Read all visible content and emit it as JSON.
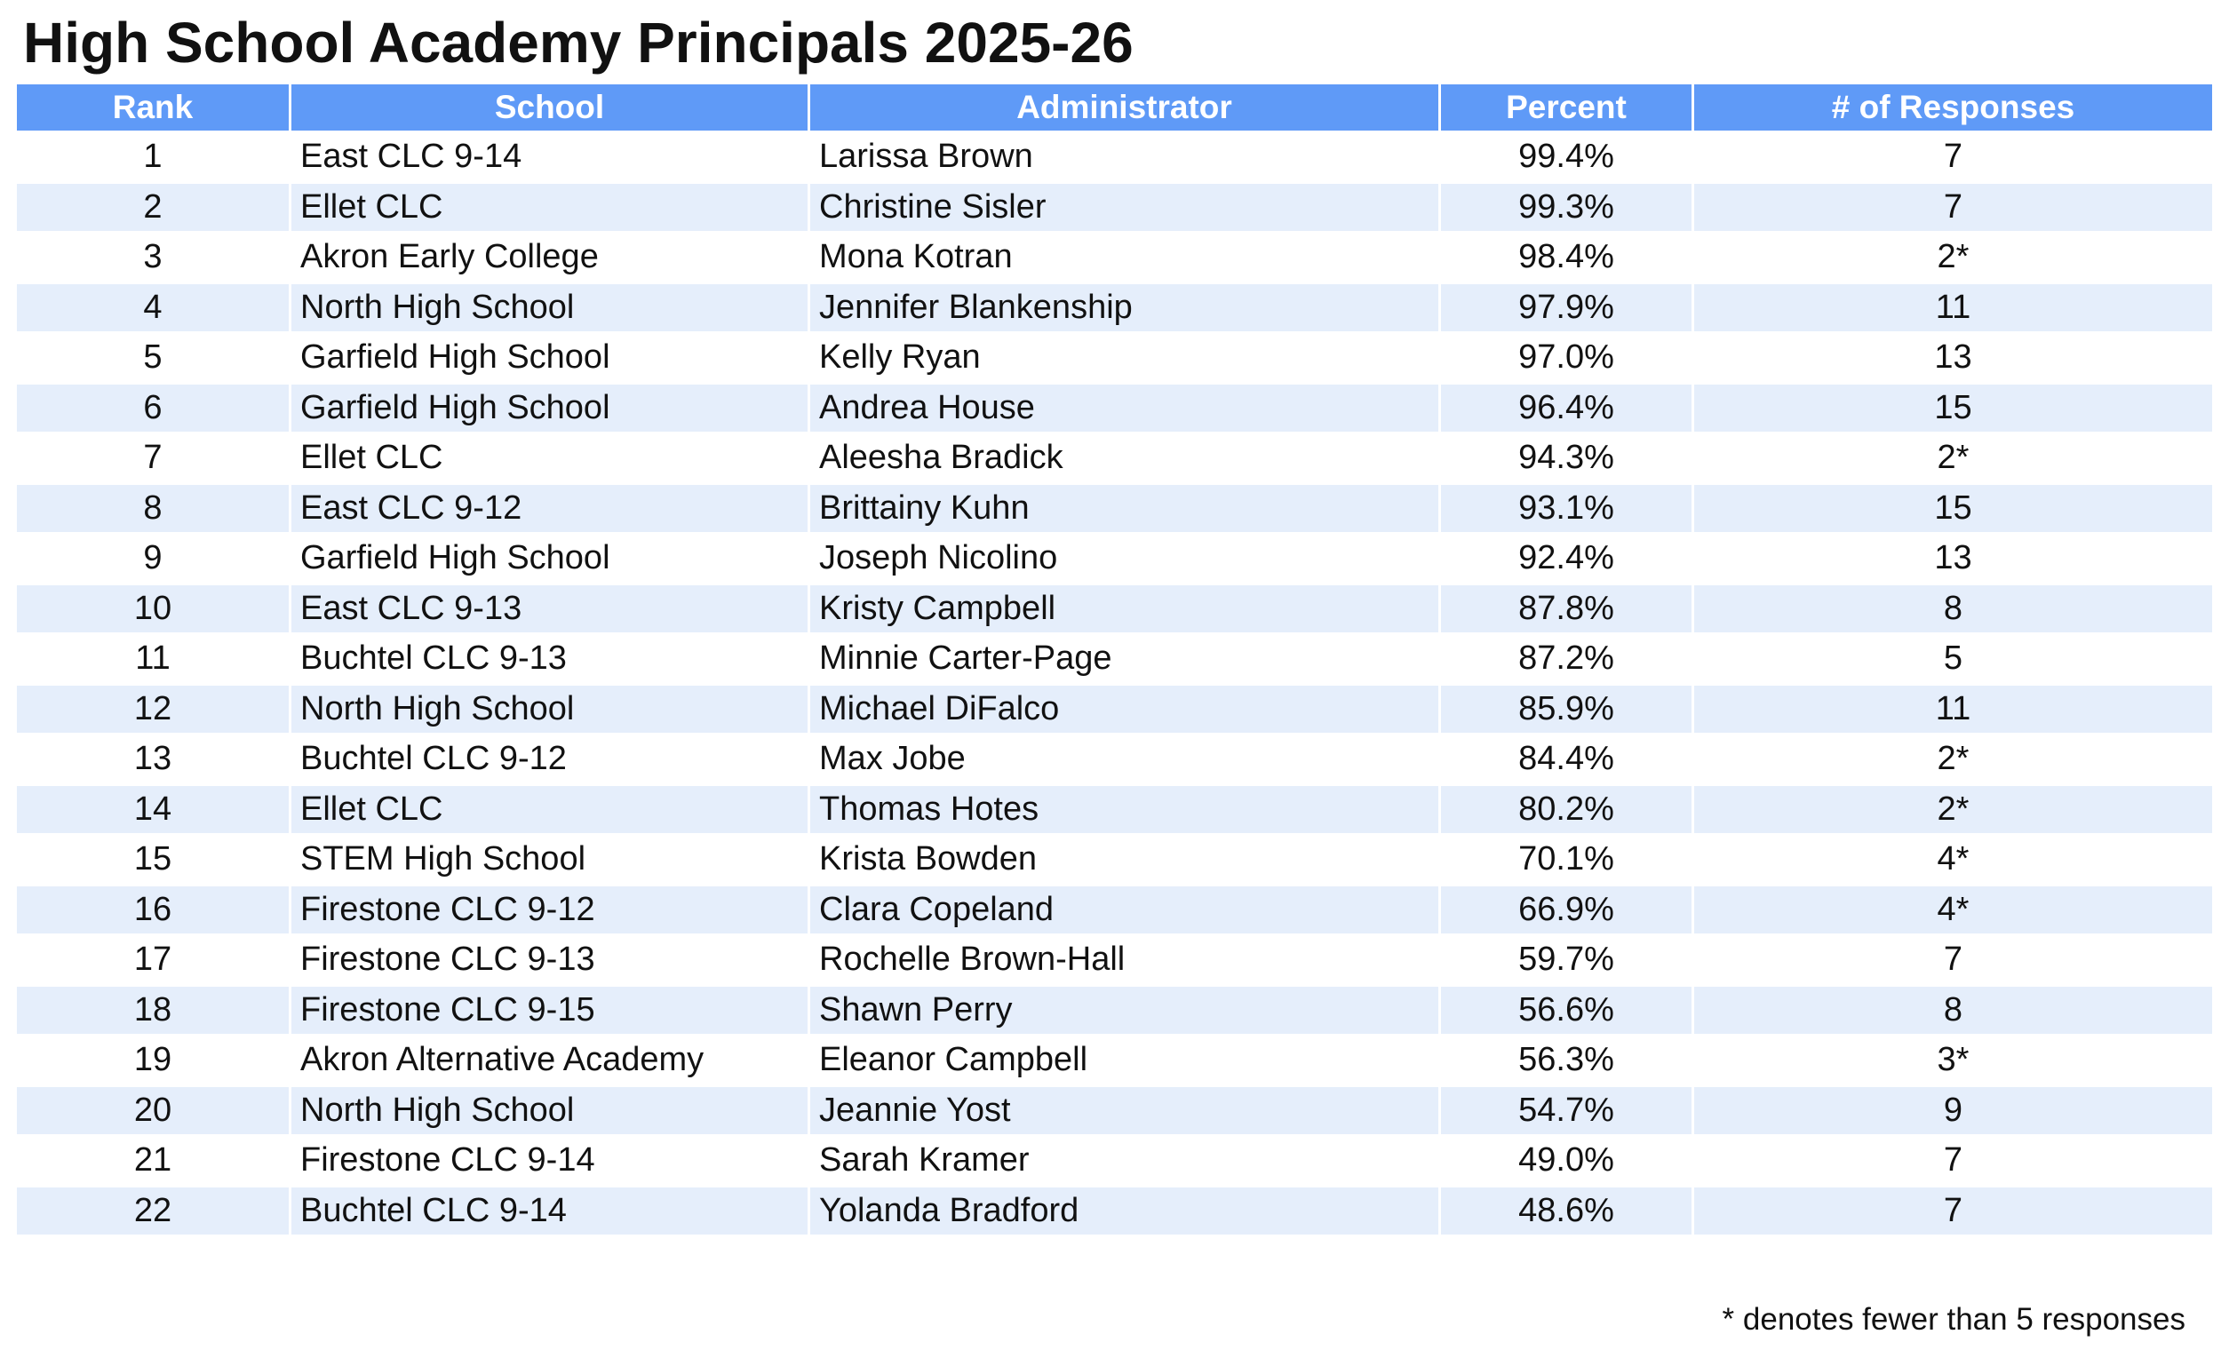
{
  "title": "High School Academy Principals 2025-26",
  "table": {
    "header": [
      "Rank",
      "School",
      "Administrator",
      "Percent",
      "# of Responses"
    ],
    "rows": [
      [
        1,
        "East CLC 9-14",
        "Larissa Brown",
        "99.4%",
        "7"
      ],
      [
        2,
        "Ellet CLC",
        "Christine Sisler",
        "99.3%",
        "7"
      ],
      [
        3,
        "Akron Early College",
        "Mona Kotran",
        "98.4%",
        "2*"
      ],
      [
        4,
        "North High School",
        "Jennifer Blankenship",
        "97.9%",
        "11"
      ],
      [
        5,
        "Garfield High School",
        "Kelly Ryan",
        "97.0%",
        "13"
      ],
      [
        6,
        "Garfield High School",
        "Andrea House",
        "96.4%",
        "15"
      ],
      [
        7,
        "Ellet CLC",
        "Aleesha Bradick",
        "94.3%",
        "2*"
      ],
      [
        8,
        "East CLC 9-12",
        "Brittainy Kuhn",
        "93.1%",
        "15"
      ],
      [
        9,
        "Garfield High School",
        "Joseph Nicolino",
        "92.4%",
        "13"
      ],
      [
        10,
        "East CLC 9-13",
        "Kristy Campbell",
        "87.8%",
        "8"
      ],
      [
        11,
        "Buchtel CLC 9-13",
        "Minnie Carter-Page",
        "87.2%",
        "5"
      ],
      [
        12,
        "North High School",
        "Michael DiFalco",
        "85.9%",
        "11"
      ],
      [
        13,
        "Buchtel CLC 9-12",
        "Max Jobe",
        "84.4%",
        "2*"
      ],
      [
        14,
        "Ellet CLC",
        "Thomas Hotes",
        "80.2%",
        "2*"
      ],
      [
        15,
        "STEM High School",
        "Krista Bowden",
        "70.1%",
        "4*"
      ],
      [
        16,
        "Firestone CLC 9-12",
        "Clara Copeland",
        "66.9%",
        "4*"
      ],
      [
        17,
        "Firestone CLC 9-13",
        "Rochelle Brown-Hall",
        "59.7%",
        "7"
      ],
      [
        18,
        "Firestone CLC 9-15",
        "Shawn Perry",
        "56.6%",
        "8"
      ],
      [
        19,
        "Akron Alternative Academy",
        "Eleanor Campbell",
        "56.3%",
        "3*"
      ],
      [
        20,
        "North High School",
        "Jeannie Yost",
        "54.7%",
        "9"
      ],
      [
        21,
        "Firestone CLC 9-14",
        "Sarah Kramer",
        "49.0%",
        "7"
      ],
      [
        22,
        "Buchtel CLC 9-14",
        "Yolanda Bradford",
        "48.6%",
        "7"
      ]
    ]
  },
  "footnote": "* denotes fewer than 5 responses"
}
